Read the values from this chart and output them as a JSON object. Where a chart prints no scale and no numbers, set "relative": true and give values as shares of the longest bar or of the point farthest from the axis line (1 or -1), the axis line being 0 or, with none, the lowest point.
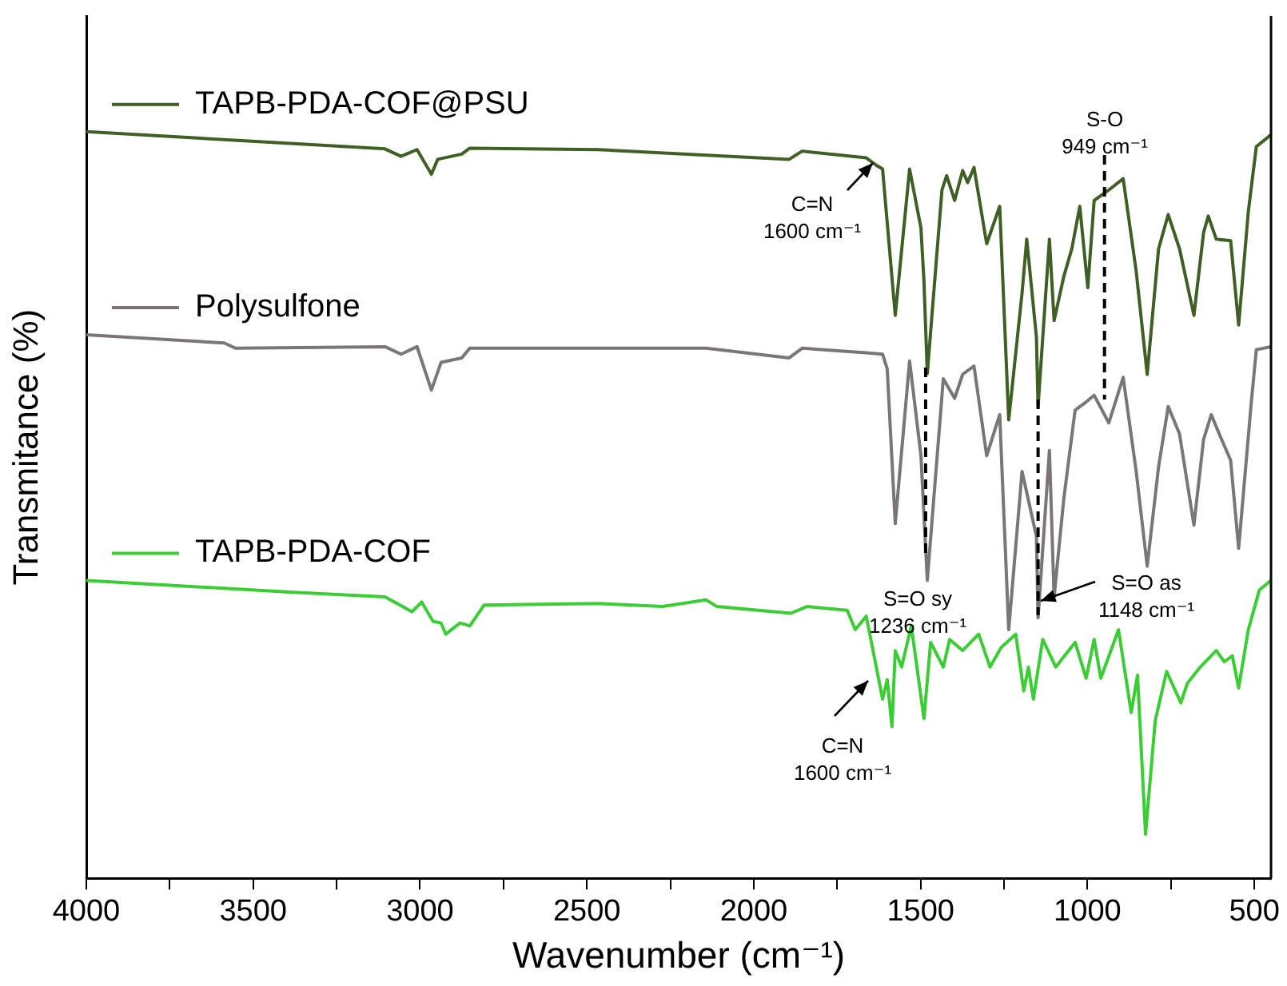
{
  "chart_data": {
    "type": "line",
    "relative": true,
    "xlabel": "Wavenumber (cm⁻¹)",
    "ylabel": "Transmitance (%)",
    "xlim": [
      4000,
      450
    ],
    "xticks": [
      4000,
      {
        "value": 3750,
        "label": null
      },
      3500,
      {
        "value": 3250,
        "label": null
      },
      3000,
      {
        "value": 2750,
        "label": null
      },
      2500,
      {
        "value": 2250,
        "label": null
      },
      2000,
      {
        "value": 1750,
        "label": null
      },
      1500,
      {
        "value": 1250,
        "label": null
      },
      1000,
      {
        "value": 750,
        "label": null
      },
      500
    ],
    "series": [
      {
        "name": "TAPB-PDA-COF@PSU",
        "color": "#3f5f25",
        "x": [
          4000,
          3105,
          3057,
          3009,
          2966,
          2947,
          2875,
          2851,
          2466,
          1894,
          1855,
          1663,
          1629,
          1614,
          1576,
          1533,
          1499,
          1490,
          1480,
          1436,
          1422,
          1398,
          1374,
          1359,
          1340,
          1302,
          1263,
          1236,
          1196,
          1182,
          1153,
          1148,
          1114,
          1100,
          1071,
          1047,
          1023,
          999,
          980,
          936,
          893,
          854,
          821,
          787,
          758,
          724,
          681,
          652,
          638,
          614,
          571,
          547,
          518,
          494,
          450
        ],
        "values": [
          1,
          0.977,
          0.967,
          0.976,
          0.943,
          0.963,
          0.97,
          0.978,
          0.976,
          0.963,
          0.974,
          0.965,
          0.954,
          0.95,
          0.754,
          0.95,
          0.871,
          0.8,
          0.676,
          0.922,
          0.941,
          0.908,
          0.948,
          0.932,
          0.952,
          0.85,
          0.9,
          0.614,
          0.784,
          0.856,
          0.725,
          0.632,
          0.856,
          0.747,
          0.806,
          0.843,
          0.9,
          0.791,
          0.908,
          0.922,
          0.937,
          0.813,
          0.675,
          0.843,
          0.889,
          0.843,
          0.754,
          0.865,
          0.887,
          0.856,
          0.854,
          0.741,
          0.893,
          0.98,
          0.996
        ]
      },
      {
        "name": "Polysulfone",
        "color": "#7a7676",
        "x": [
          4000,
          3587,
          3553,
          3105,
          3057,
          3009,
          2966,
          2937,
          2875,
          2851,
          2143,
          1894,
          1855,
          1663,
          1614,
          1600,
          1576,
          1533,
          1499,
          1480,
          1432,
          1398,
          1374,
          1340,
          1302,
          1263,
          1236,
          1196,
          1153,
          1148,
          1114,
          1100,
          1071,
          1037,
          1004,
          980,
          936,
          893,
          854,
          821,
          787,
          758,
          724,
          681,
          652,
          629,
          605,
          571,
          547,
          509,
          494,
          450
        ],
        "values": [
          0.728,
          0.717,
          0.71,
          0.712,
          0.702,
          0.712,
          0.654,
          0.691,
          0.697,
          0.71,
          0.71,
          0.697,
          0.71,
          0.704,
          0.702,
          0.682,
          0.475,
          0.693,
          0.566,
          0.399,
          0.669,
          0.643,
          0.675,
          0.686,
          0.566,
          0.621,
          0.333,
          0.545,
          0.458,
          0.349,
          0.573,
          0.377,
          0.508,
          0.627,
          0.638,
          0.647,
          0.61,
          0.671,
          0.545,
          0.418,
          0.551,
          0.632,
          0.595,
          0.473,
          0.588,
          0.621,
          0.595,
          0.56,
          0.442,
          0.638,
          0.708,
          0.712
        ]
      },
      {
        "name": "TAPB-PDA-COF",
        "color": "#3ccc35",
        "x": [
          4000,
          3380,
          3105,
          3024,
          2995,
          2961,
          2937,
          2923,
          2880,
          2851,
          2808,
          2466,
          2273,
          2143,
          2110,
          1889,
          1840,
          1720,
          1696,
          1663,
          1614,
          1600,
          1586,
          1576,
          1557,
          1528,
          1490,
          1470,
          1432,
          1413,
          1374,
          1326,
          1292,
          1259,
          1215,
          1191,
          1177,
          1162,
          1134,
          1095,
          1037,
          1004,
          980,
          960,
          907,
          869,
          850,
          826,
          797,
          763,
          720,
          701,
          662,
          614,
          590,
          566,
          547,
          518,
          485,
          450
        ],
        "values": [
          0.399,
          0.383,
          0.377,
          0.357,
          0.37,
          0.344,
          0.342,
          0.327,
          0.342,
          0.338,
          0.366,
          0.368,
          0.364,
          0.373,
          0.364,
          0.355,
          0.364,
          0.359,
          0.333,
          0.351,
          0.24,
          0.266,
          0.203,
          0.305,
          0.283,
          0.338,
          0.214,
          0.316,
          0.283,
          0.32,
          0.305,
          0.327,
          0.283,
          0.309,
          0.327,
          0.251,
          0.283,
          0.24,
          0.32,
          0.283,
          0.316,
          0.268,
          0.32,
          0.268,
          0.333,
          0.222,
          0.272,
          0.059,
          0.211,
          0.277,
          0.235,
          0.261,
          0.283,
          0.305,
          0.29,
          0.298,
          0.255,
          0.333,
          0.386,
          0.399
        ]
      }
    ],
    "legend": "top left",
    "ref_lines": [
      {
        "axis": "x",
        "value": 1485,
        "line_style": "dashed",
        "color": "#000000"
      },
      {
        "axis": "x",
        "value": 1148,
        "line_style": "dashed",
        "color": "#000000"
      },
      {
        "axis": "x",
        "value": 949,
        "line_style": "dashed",
        "color": "#000000"
      }
    ],
    "annotations": [
      "C=N\n1600 cm⁻¹",
      "S-O\n949 cm⁻¹",
      "S=O sy\n1236 cm⁻¹",
      "S=O as\n1148 cm⁻¹",
      "C=N\n1600 cm⁻¹"
    ]
  }
}
